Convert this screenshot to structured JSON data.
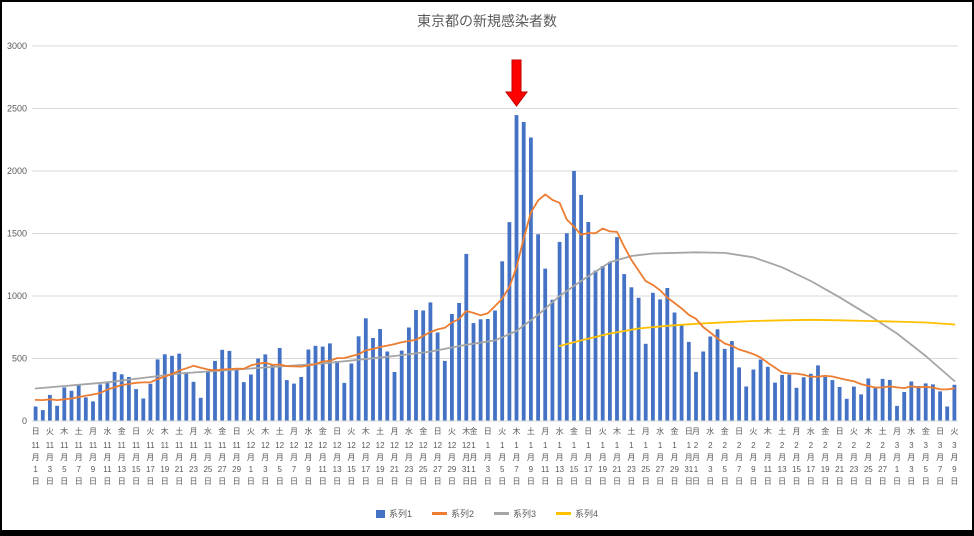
{
  "style": {
    "text_color": "#595959",
    "grid_color": "#D9D9D9",
    "background": "#FFFFFF",
    "frame_border": "#000000"
  },
  "chart_data": {
    "type": "combo_bar_line",
    "title": "東京都の新規感染者数",
    "ylim": [
      0,
      3000
    ],
    "y_ticks": [
      0,
      500,
      1000,
      1500,
      2000,
      2500,
      3000
    ],
    "grid": true,
    "legend_position": "bottom",
    "x_range": {
      "start_label": "11月1日",
      "end_label": "3月9日",
      "num_days": 129
    },
    "x_ticks": {
      "day_index": [
        0,
        2,
        4,
        6,
        8,
        10,
        12,
        14,
        16,
        18,
        20,
        22,
        24,
        26,
        28,
        30,
        32,
        34,
        36,
        38,
        40,
        42,
        44,
        46,
        48,
        50,
        52,
        54,
        56,
        58,
        60,
        61,
        63,
        65,
        67,
        69,
        71,
        73,
        75,
        77,
        79,
        81,
        83,
        85,
        87,
        89,
        91,
        92,
        94,
        96,
        98,
        100,
        102,
        104,
        106,
        108,
        110,
        112,
        114,
        116,
        118,
        120,
        122,
        124,
        126,
        128
      ],
      "weekday": [
        "日",
        "火",
        "木",
        "土",
        "月",
        "水",
        "金",
        "日",
        "火",
        "木",
        "土",
        "月",
        "水",
        "金",
        "日",
        "火",
        "木",
        "土",
        "月",
        "水",
        "金",
        "日",
        "火",
        "木",
        "土",
        "月",
        "水",
        "金",
        "日",
        "火",
        "木",
        "金",
        "日",
        "火",
        "木",
        "土",
        "月",
        "水",
        "金",
        "日",
        "火",
        "木",
        "土",
        "月",
        "水",
        "金",
        "日",
        "月",
        "水",
        "金",
        "日",
        "火",
        "木",
        "土",
        "月",
        "水",
        "金",
        "日",
        "火",
        "木",
        "土",
        "月",
        "水",
        "金",
        "日",
        "火"
      ],
      "date_label": [
        "11月1日",
        "11月3日",
        "11月5日",
        "11月7日",
        "11月9日",
        "11月11日",
        "11月13日",
        "11月15日",
        "11月17日",
        "11月19日",
        "11月21日",
        "11月23日",
        "11月25日",
        "11月27日",
        "11月29日",
        "12月1日",
        "12月3日",
        "12月5日",
        "12月7日",
        "12月9日",
        "12月11日",
        "12月13日",
        "12月15日",
        "12月17日",
        "12月19日",
        "12月21日",
        "12月23日",
        "12月25日",
        "12月27日",
        "12月29日",
        "12月31日",
        "1月1日",
        "1月3日",
        "1月5日",
        "1月7日",
        "1月9日",
        "1月11日",
        "1月13日",
        "1月15日",
        "1月17日",
        "1月19日",
        "1月21日",
        "1月23日",
        "1月25日",
        "1月27日",
        "1月29日",
        "1月31日",
        "2月1日",
        "2月3日",
        "2月5日",
        "2月7日",
        "2月9日",
        "2月11日",
        "2月13日",
        "2月15日",
        "2月17日",
        "2月19日",
        "2月21日",
        "2月23日",
        "2月25日",
        "2月27日",
        "3月1日",
        "3月3日",
        "3月5日",
        "3月7日",
        "3月9日"
      ]
    },
    "series": [
      {
        "name": "系列1",
        "type": "bar",
        "color": "#4472C4",
        "values": [
          116,
          87,
          209,
          122,
          269,
          242,
          294,
          189,
          157,
          293,
          317,
          393,
          374,
          352,
          255,
          180,
          298,
          493,
          534,
          522,
          539,
          391,
          314,
          186,
          401,
          481,
          570,
          561,
          418,
          311,
          372,
          500,
          533,
          449,
          584,
          327,
          299,
          352,
          572,
          602,
          595,
          621,
          480,
          305,
          460,
          678,
          822,
          664,
          736,
          556,
          392,
          563,
          748,
          888,
          884,
          949,
          708,
          481,
          856,
          944,
          1337,
          783,
          814,
          816,
          884,
          1278,
          1591,
          2447,
          2392,
          2268,
          1494,
          1219,
          970,
          1433,
          1502,
          2001,
          1809,
          1592,
          1204,
          1240,
          1274,
          1471,
          1175,
          1070,
          986,
          618,
          1026,
          973,
          1064,
          868,
          769,
          633,
          393,
          556,
          676,
          734,
          577,
          639,
          429,
          276,
          412,
          491,
          434,
          307,
          369,
          371,
          266,
          350,
          378,
          445,
          353,
          327,
          272,
          178,
          275,
          213,
          340,
          270,
          337,
          329,
          121,
          232,
          316,
          279,
          301,
          293,
          237,
          116,
          290
        ]
      },
      {
        "name": "系列2",
        "type": "line",
        "color": "#ED7D31",
        "values": [
          169,
          167,
          174,
          167,
          174,
          180,
          191,
          202,
          212,
          224,
          252,
          269,
          288,
          296,
          306,
          309,
          310,
          335,
          355,
          376,
          403,
          422,
          442,
          426,
          412,
          405,
          412,
          415,
          419,
          418,
          445,
          459,
          466,
          449,
          452,
          439,
          438,
          435,
          445,
          455,
          476,
          481,
          503,
          504,
          519,
          534,
          566,
          576,
          592,
          603,
          615,
          630,
          640,
          650,
          681,
          711,
          733,
          746,
          788,
          816,
          880,
          865,
          846,
          862,
          919,
          979,
          1072,
          1230,
          1460,
          1668,
          1765,
          1813,
          1769,
          1746,
          1611,
          1555,
          1490,
          1504,
          1502,
          1540,
          1517,
          1513,
          1395,
          1289,
          1203,
          1119,
          1089,
          1046,
          987,
          944,
          901,
          850,
          818,
          751,
          708,
          661,
          620,
          601,
          572,
          555,
          535,
          508,
          465,
          427,
          388,
          380,
          379,
          370,
          354,
          355,
          362,
          356,
          342,
          329,
          318,
          295,
          280,
          268,
          269,
          277,
          269,
          263,
          278,
          269,
          274,
          267,
          254,
          253,
          262
        ]
      },
      {
        "name": "系列3",
        "type": "line",
        "color": "#A5A5A5",
        "points": [
          [
            0,
            260
          ],
          [
            10,
            310
          ],
          [
            20,
            380
          ],
          [
            30,
            420
          ],
          [
            40,
            460
          ],
          [
            50,
            520
          ],
          [
            55,
            555
          ],
          [
            60,
            610
          ],
          [
            64,
            645
          ],
          [
            67,
            720
          ],
          [
            70,
            850
          ],
          [
            73,
            1000
          ],
          [
            76,
            1120
          ],
          [
            80,
            1270
          ],
          [
            83,
            1320
          ],
          [
            86,
            1340
          ],
          [
            92,
            1350
          ],
          [
            96,
            1345
          ],
          [
            100,
            1310
          ],
          [
            104,
            1230
          ],
          [
            108,
            1120
          ],
          [
            112,
            990
          ],
          [
            116,
            850
          ],
          [
            120,
            700
          ],
          [
            124,
            520
          ],
          [
            128,
            320
          ]
        ]
      },
      {
        "name": "系列4",
        "type": "line",
        "color": "#FFC000",
        "points": [
          [
            73,
            600
          ],
          [
            76,
            645
          ],
          [
            80,
            700
          ],
          [
            84,
            740
          ],
          [
            88,
            762
          ],
          [
            92,
            778
          ],
          [
            96,
            790
          ],
          [
            100,
            800
          ],
          [
            104,
            806
          ],
          [
            108,
            810
          ],
          [
            112,
            806
          ],
          [
            116,
            800
          ],
          [
            120,
            795
          ],
          [
            124,
            788
          ],
          [
            128,
            772
          ]
        ]
      }
    ],
    "annotation": {
      "shape": "down_arrow",
      "color": "#FF0000",
      "border_color": "#C00000",
      "day_index": 67,
      "points_at": "1月7日"
    }
  }
}
